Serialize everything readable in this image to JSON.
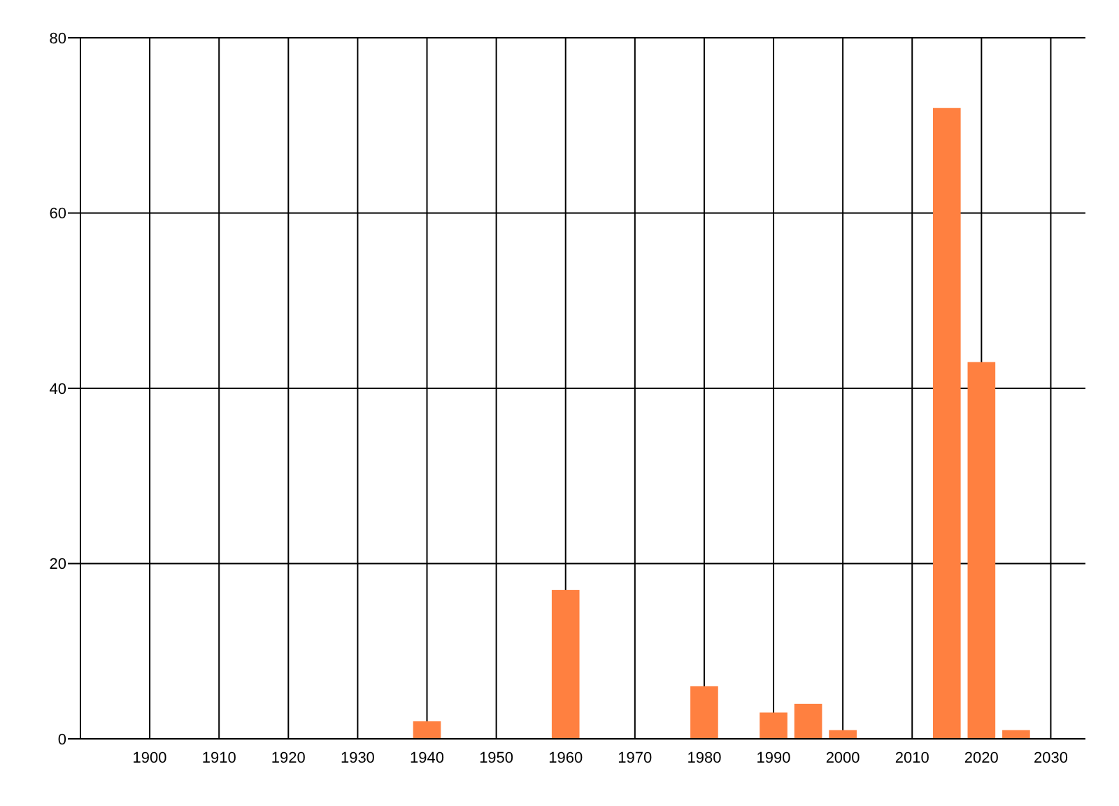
{
  "chart_data": {
    "type": "bar",
    "x": [
      1940,
      1960,
      1980,
      1990,
      1995,
      2000,
      2015,
      2020,
      2025
    ],
    "values": [
      2,
      17,
      6,
      3,
      4,
      1,
      72,
      43,
      1
    ],
    "color": "#ff8040",
    "xlim": [
      1890,
      2035
    ],
    "xticks": [
      1900,
      1910,
      1920,
      1930,
      1940,
      1950,
      1960,
      1970,
      1980,
      1990,
      2000,
      2010,
      2020,
      2030
    ],
    "ylim": [
      0,
      80
    ],
    "yticks": [
      0,
      20,
      40,
      60,
      80
    ],
    "grid": true
  }
}
